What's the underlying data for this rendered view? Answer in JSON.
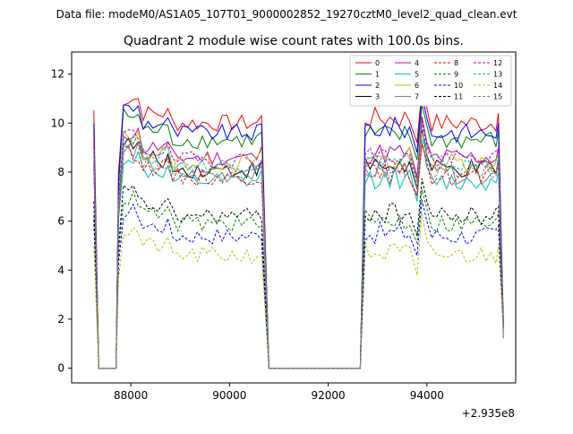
{
  "figure": {
    "suptitle": "Data file: modeM0/AS1A05_107T01_9000002852_19270cztM0_level2_quad_clean.evt"
  },
  "chart_data": {
    "type": "line",
    "title": "Quadrant 2 module wise count rates with 100.0s bins.",
    "xlabel": "",
    "ylabel": "",
    "x_offset_label": "+2.935e8",
    "xlim": [
      86800,
      95800
    ],
    "ylim": [
      -0.6,
      12.9
    ],
    "x_ticks": [
      88000,
      90000,
      92000,
      94000
    ],
    "y_ticks": [
      0,
      2,
      4,
      6,
      8,
      10,
      12
    ],
    "grid": false,
    "legend_position": "top-right",
    "legend_columns": 4,
    "segments": [
      {
        "x_start": 87250,
        "x_end": 90650
      },
      {
        "x_start": 92750,
        "x_end": 95550
      }
    ],
    "gaps": [
      {
        "x_from": 87450,
        "x_to": 87700,
        "value": 0
      },
      {
        "x_from": 90850,
        "x_to": 92650,
        "value": 0
      }
    ],
    "series": [
      {
        "name": "0",
        "color": "#ff0000",
        "dash": "solid",
        "approx_level": 10.0
      },
      {
        "name": "1",
        "color": "#008000",
        "dash": "solid",
        "approx_level": 9.3
      },
      {
        "name": "2",
        "color": "#0000ff",
        "dash": "solid",
        "approx_level": 9.6
      },
      {
        "name": "3",
        "color": "#000000",
        "dash": "solid",
        "approx_level": 8.1
      },
      {
        "name": "4",
        "color": "#bf00bf",
        "dash": "solid",
        "approx_level": 8.6
      },
      {
        "name": "5",
        "color": "#00bfbf",
        "dash": "solid",
        "approx_level": 7.6
      },
      {
        "name": "6",
        "color": "#bfbf00",
        "dash": "solid",
        "approx_level": 8.4
      },
      {
        "name": "7",
        "color": "#808080",
        "dash": "solid",
        "approx_level": 7.9
      },
      {
        "name": "8",
        "color": "#ff0000",
        "dash": "dashed",
        "approx_level": 7.8
      },
      {
        "name": "9",
        "color": "#008000",
        "dash": "dashed",
        "approx_level": 5.9
      },
      {
        "name": "10",
        "color": "#0000ff",
        "dash": "dashed",
        "approx_level": 5.4
      },
      {
        "name": "11",
        "color": "#000000",
        "dash": "dashed",
        "approx_level": 6.2
      },
      {
        "name": "12",
        "color": "#bf00bf",
        "dash": "dashed",
        "approx_level": 8.5
      },
      {
        "name": "13",
        "color": "#00bfbf",
        "dash": "dashed",
        "approx_level": 8.3
      },
      {
        "name": "14",
        "color": "#bfbf00",
        "dash": "dashed",
        "approx_level": 4.6
      },
      {
        "name": "15",
        "color": "#808080",
        "dash": "dashed",
        "approx_level": 8.1
      }
    ]
  }
}
